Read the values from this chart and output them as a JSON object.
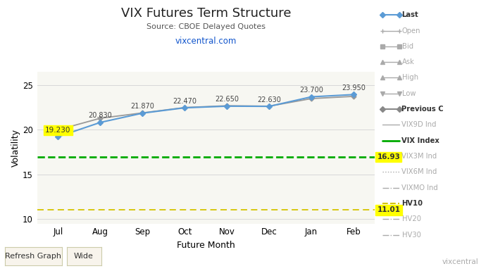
{
  "title": "VIX Futures Term Structure",
  "subtitle": "Source: CBOE Delayed Quotes",
  "link_text": "vixcentral.com",
  "xlabel": "Future Month",
  "ylabel": "Volatility",
  "months": [
    "Jul",
    "Aug",
    "Sep",
    "Oct",
    "Nov",
    "Dec",
    "Jan",
    "Feb"
  ],
  "last_values": [
    19.23,
    20.83,
    21.87,
    22.47,
    22.65,
    22.63,
    23.7,
    23.95
  ],
  "prev_close_values": [
    20.0,
    21.3,
    21.9,
    22.5,
    22.7,
    22.65,
    23.5,
    23.75
  ],
  "vix_index_value": 16.93,
  "hv10_value": 11.01,
  "last_color": "#5b9bd5",
  "prev_color": "#999999",
  "vix_index_color": "#00aa00",
  "hv10_color": "#d4c400",
  "background_color": "#ffffff",
  "plot_bg_color": "#f7f7f2",
  "ylim": [
    9.5,
    26.5
  ],
  "yticks": [
    10,
    15,
    20,
    25
  ],
  "legend_entries": [
    {
      "label": "Last",
      "color": "#5b9bd5",
      "lw": 1.5,
      "ls": "-",
      "marker": "D",
      "bold": true,
      "faded": false
    },
    {
      "label": "Open",
      "color": "#aaaaaa",
      "lw": 1.0,
      "ls": "-",
      "marker": "+",
      "bold": false,
      "faded": true
    },
    {
      "label": "Bid",
      "color": "#aaaaaa",
      "lw": 1.0,
      "ls": "-",
      "marker": "s",
      "bold": false,
      "faded": true
    },
    {
      "label": "Ask",
      "color": "#aaaaaa",
      "lw": 1.0,
      "ls": "-",
      "marker": "^",
      "bold": false,
      "faded": true
    },
    {
      "label": "High",
      "color": "#aaaaaa",
      "lw": 1.0,
      "ls": "-",
      "marker": "^",
      "bold": false,
      "faded": true
    },
    {
      "label": "Low",
      "color": "#aaaaaa",
      "lw": 1.0,
      "ls": "-",
      "marker": "v",
      "bold": false,
      "faded": true
    },
    {
      "label": "Previous C",
      "color": "#888888",
      "lw": 1.5,
      "ls": "-",
      "marker": "D",
      "bold": true,
      "faded": false
    },
    {
      "label": "VIX9D Ind",
      "color": "#aaaaaa",
      "lw": 1.0,
      "ls": "-",
      "marker": "",
      "bold": false,
      "faded": true
    },
    {
      "label": "VIX Index",
      "color": "#00aa00",
      "lw": 2.0,
      "ls": "-",
      "marker": "",
      "bold": true,
      "faded": false
    },
    {
      "label": "VIX3M Ind",
      "color": "#aaaaaa",
      "lw": 1.0,
      "ls": "-",
      "marker": "",
      "bold": false,
      "faded": true
    },
    {
      "label": "VIX6M Ind",
      "color": "#aaaaaa",
      "lw": 1.0,
      "ls": ":",
      "marker": "",
      "bold": false,
      "faded": true
    },
    {
      "label": "VIXMO Ind",
      "color": "#aaaaaa",
      "lw": 1.0,
      "ls": "-.",
      "marker": "",
      "bold": false,
      "faded": true
    },
    {
      "label": "HV10",
      "color": "#d4c400",
      "lw": 1.5,
      "ls": "--",
      "marker": "",
      "bold": true,
      "faded": false
    },
    {
      "label": "HV20",
      "color": "#aaaaaa",
      "lw": 1.0,
      "ls": "-.",
      "marker": "",
      "bold": false,
      "faded": true
    },
    {
      "label": "HV30",
      "color": "#aaaaaa",
      "lw": 1.0,
      "ls": "-.",
      "marker": "",
      "bold": false,
      "faded": true
    }
  ],
  "watermark": "vixcentral"
}
